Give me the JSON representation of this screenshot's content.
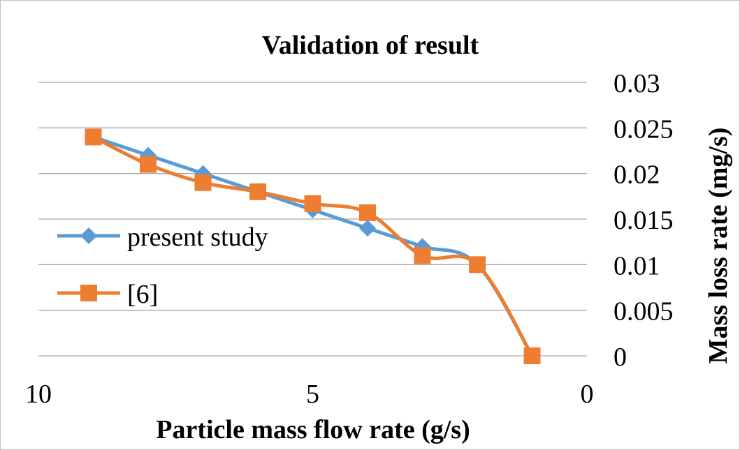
{
  "chart_data": {
    "type": "line",
    "title": "Validation of result",
    "xlabel": "Particle mass flow rate (g/s)",
    "ylabel": "Mass loss rate (mg/s)",
    "x_reversed": true,
    "y_axis_side": "right",
    "xlim": [
      0,
      10
    ],
    "ylim": [
      0,
      0.03
    ],
    "x_ticks": [
      "10",
      "5",
      "0"
    ],
    "x_tick_values": [
      10,
      5,
      0
    ],
    "y_ticks": [
      "0.03",
      "0.025",
      "0.02",
      "0.015",
      "0.01",
      "0.005",
      "0"
    ],
    "y_tick_values": [
      0.03,
      0.025,
      0.02,
      0.015,
      0.01,
      0.005,
      0
    ],
    "grid": "horizontal",
    "legend_position": "left",
    "series": [
      {
        "name": "present study",
        "color": "#5b9bd5",
        "marker": "diamond",
        "x": [
          9,
          8,
          7,
          6,
          5,
          4,
          3,
          2,
          1
        ],
        "y": [
          0.024,
          0.022,
          0.02,
          0.018,
          0.016,
          0.014,
          0.012,
          0.01,
          0
        ]
      },
      {
        "name": "[6]",
        "color": "#ed7d31",
        "marker": "square",
        "x": [
          9,
          8,
          7,
          6,
          5,
          4,
          3,
          2,
          1
        ],
        "y": [
          0.024,
          0.021,
          0.019,
          0.018,
          0.0167,
          0.0157,
          0.011,
          0.01,
          0
        ]
      }
    ]
  }
}
